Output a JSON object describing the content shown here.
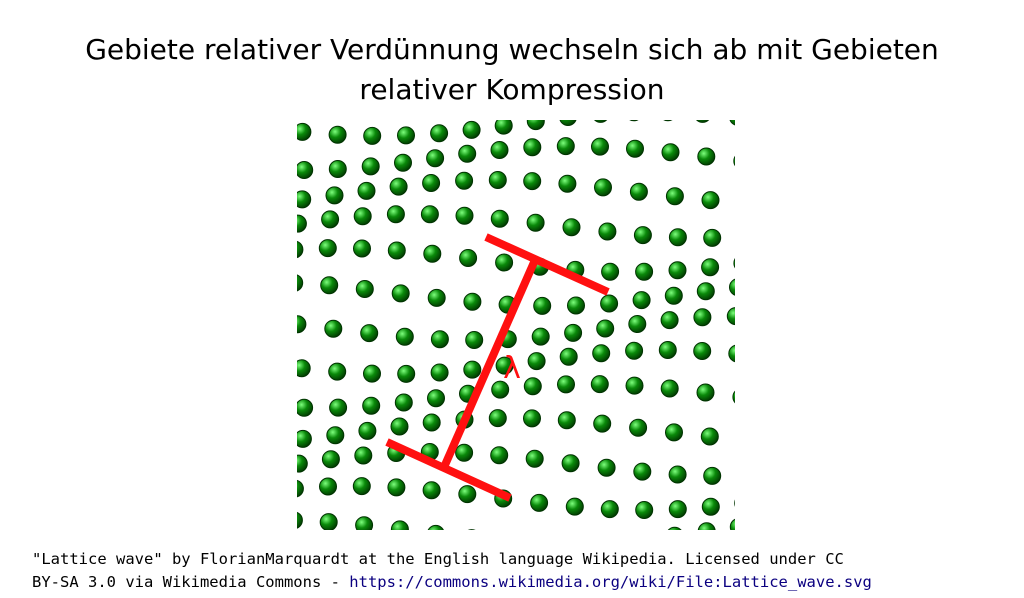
{
  "title": {
    "line1": "Gebiete relativer Verdünnung wechseln sich ab mit Gebieten",
    "line2": "relativer Kompression"
  },
  "figure": {
    "wavelength_symbol": "λ",
    "colors": {
      "atom_fill": "#0a8a0a",
      "atom_highlight": "#7dff7d",
      "atom_edge": "#003300",
      "marker": "#ff1010"
    }
  },
  "caption": {
    "line1": "\"Lattice wave\" by FlorianMarquardt at the English language Wikipedia. Licensed under CC",
    "line2_prefix": "BY-SA 3.0 via Wikimedia Commons - ",
    "link": "https://commons.wikimedia.org/wiki/File:Lattice_wave.svg"
  }
}
